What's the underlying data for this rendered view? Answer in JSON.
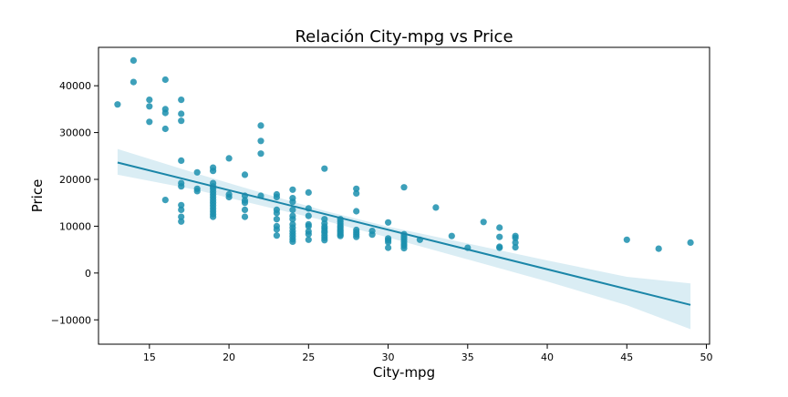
{
  "chart_data": {
    "type": "scatter",
    "title": "Relación City-mpg vs Price",
    "xlabel": "City-mpg",
    "ylabel": "Price",
    "xlim": [
      11.8,
      50.2
    ],
    "ylim": [
      -15200,
      48200
    ],
    "xticks": [
      15,
      20,
      25,
      30,
      35,
      40,
      45,
      50
    ],
    "yticks": [
      -10000,
      0,
      10000,
      20000,
      30000,
      40000
    ],
    "grid": false,
    "legend": "none",
    "colors": {
      "points": "#1b8fae",
      "line": "#1b86a8",
      "ci": "#add8e6"
    },
    "points": [
      {
        "x": 13,
        "y": 36000
      },
      {
        "x": 14,
        "y": 45400
      },
      {
        "x": 14,
        "y": 40800
      },
      {
        "x": 15,
        "y": 37000
      },
      {
        "x": 15,
        "y": 35600
      },
      {
        "x": 15,
        "y": 32300
      },
      {
        "x": 16,
        "y": 41300
      },
      {
        "x": 16,
        "y": 35000
      },
      {
        "x": 16,
        "y": 34200
      },
      {
        "x": 16,
        "y": 30800
      },
      {
        "x": 16,
        "y": 15600
      },
      {
        "x": 17,
        "y": 37000
      },
      {
        "x": 17,
        "y": 34000
      },
      {
        "x": 17,
        "y": 32500
      },
      {
        "x": 17,
        "y": 24000
      },
      {
        "x": 17,
        "y": 19200
      },
      {
        "x": 17,
        "y": 18500
      },
      {
        "x": 17,
        "y": 14500
      },
      {
        "x": 17,
        "y": 13500
      },
      {
        "x": 17,
        "y": 12000
      },
      {
        "x": 17,
        "y": 11000
      },
      {
        "x": 18,
        "y": 21500
      },
      {
        "x": 18,
        "y": 18000
      },
      {
        "x": 18,
        "y": 17500
      },
      {
        "x": 19,
        "y": 22500
      },
      {
        "x": 19,
        "y": 21800
      },
      {
        "x": 19,
        "y": 19200
      },
      {
        "x": 19,
        "y": 18500
      },
      {
        "x": 19,
        "y": 18000
      },
      {
        "x": 19,
        "y": 17400
      },
      {
        "x": 19,
        "y": 16800
      },
      {
        "x": 19,
        "y": 16200
      },
      {
        "x": 19,
        "y": 15600
      },
      {
        "x": 19,
        "y": 15000
      },
      {
        "x": 19,
        "y": 14400
      },
      {
        "x": 19,
        "y": 13800
      },
      {
        "x": 19,
        "y": 13200
      },
      {
        "x": 19,
        "y": 12600
      },
      {
        "x": 19,
        "y": 12000
      },
      {
        "x": 20,
        "y": 24500
      },
      {
        "x": 20,
        "y": 16800
      },
      {
        "x": 20,
        "y": 16200
      },
      {
        "x": 21,
        "y": 21000
      },
      {
        "x": 21,
        "y": 16500
      },
      {
        "x": 21,
        "y": 15500
      },
      {
        "x": 21,
        "y": 15000
      },
      {
        "x": 21,
        "y": 13500
      },
      {
        "x": 21,
        "y": 12000
      },
      {
        "x": 22,
        "y": 31500
      },
      {
        "x": 22,
        "y": 28200
      },
      {
        "x": 22,
        "y": 25500
      },
      {
        "x": 22,
        "y": 16500
      },
      {
        "x": 23,
        "y": 16800
      },
      {
        "x": 23,
        "y": 16200
      },
      {
        "x": 23,
        "y": 13500
      },
      {
        "x": 23,
        "y": 12800
      },
      {
        "x": 23,
        "y": 11500
      },
      {
        "x": 23,
        "y": 10000
      },
      {
        "x": 23,
        "y": 9300
      },
      {
        "x": 23,
        "y": 8000
      },
      {
        "x": 24,
        "y": 17800
      },
      {
        "x": 24,
        "y": 16000
      },
      {
        "x": 24,
        "y": 15200
      },
      {
        "x": 24,
        "y": 13500
      },
      {
        "x": 24,
        "y": 12200
      },
      {
        "x": 24,
        "y": 11500
      },
      {
        "x": 24,
        "y": 10400
      },
      {
        "x": 24,
        "y": 9700
      },
      {
        "x": 24,
        "y": 9000
      },
      {
        "x": 24,
        "y": 8400
      },
      {
        "x": 24,
        "y": 7800
      },
      {
        "x": 24,
        "y": 7200
      },
      {
        "x": 24,
        "y": 6700
      },
      {
        "x": 25,
        "y": 17200
      },
      {
        "x": 25,
        "y": 13800
      },
      {
        "x": 25,
        "y": 12200
      },
      {
        "x": 25,
        "y": 10400
      },
      {
        "x": 25,
        "y": 10000
      },
      {
        "x": 25,
        "y": 8900
      },
      {
        "x": 25,
        "y": 8300
      },
      {
        "x": 25,
        "y": 7100
      },
      {
        "x": 26,
        "y": 22300
      },
      {
        "x": 26,
        "y": 11500
      },
      {
        "x": 26,
        "y": 10600
      },
      {
        "x": 26,
        "y": 9900
      },
      {
        "x": 26,
        "y": 9500
      },
      {
        "x": 26,
        "y": 9000
      },
      {
        "x": 26,
        "y": 8600
      },
      {
        "x": 26,
        "y": 8000
      },
      {
        "x": 26,
        "y": 7500
      },
      {
        "x": 26,
        "y": 7000
      },
      {
        "x": 27,
        "y": 11500
      },
      {
        "x": 27,
        "y": 11000
      },
      {
        "x": 27,
        "y": 10500
      },
      {
        "x": 27,
        "y": 10000
      },
      {
        "x": 27,
        "y": 9700
      },
      {
        "x": 27,
        "y": 9300
      },
      {
        "x": 27,
        "y": 9000
      },
      {
        "x": 27,
        "y": 8600
      },
      {
        "x": 27,
        "y": 8200
      },
      {
        "x": 27,
        "y": 7900
      },
      {
        "x": 28,
        "y": 18000
      },
      {
        "x": 28,
        "y": 17000
      },
      {
        "x": 28,
        "y": 13200
      },
      {
        "x": 28,
        "y": 9200
      },
      {
        "x": 28,
        "y": 8700
      },
      {
        "x": 28,
        "y": 8200
      },
      {
        "x": 28,
        "y": 7700
      },
      {
        "x": 29,
        "y": 9000
      },
      {
        "x": 29,
        "y": 8200
      },
      {
        "x": 30,
        "y": 10800
      },
      {
        "x": 30,
        "y": 7400
      },
      {
        "x": 30,
        "y": 7000
      },
      {
        "x": 30,
        "y": 6600
      },
      {
        "x": 30,
        "y": 5400
      },
      {
        "x": 31,
        "y": 18300
      },
      {
        "x": 31,
        "y": 8300
      },
      {
        "x": 31,
        "y": 7700
      },
      {
        "x": 31,
        "y": 7200
      },
      {
        "x": 31,
        "y": 6700
      },
      {
        "x": 31,
        "y": 6200
      },
      {
        "x": 31,
        "y": 5800
      },
      {
        "x": 31,
        "y": 5300
      },
      {
        "x": 32,
        "y": 7100
      },
      {
        "x": 33,
        "y": 14000
      },
      {
        "x": 34,
        "y": 7900
      },
      {
        "x": 35,
        "y": 5400
      },
      {
        "x": 36,
        "y": 10900
      },
      {
        "x": 37,
        "y": 9700
      },
      {
        "x": 37,
        "y": 7700
      },
      {
        "x": 37,
        "y": 5600
      },
      {
        "x": 37,
        "y": 5400
      },
      {
        "x": 38,
        "y": 7900
      },
      {
        "x": 38,
        "y": 7500
      },
      {
        "x": 38,
        "y": 6500
      },
      {
        "x": 38,
        "y": 5500
      },
      {
        "x": 45,
        "y": 7100
      },
      {
        "x": 47,
        "y": 5200
      },
      {
        "x": 49,
        "y": 6500
      }
    ],
    "regression": {
      "x": [
        13,
        49
      ],
      "y": [
        23600,
        -6800
      ]
    },
    "ci_band": [
      {
        "x": 13,
        "lo": 21000,
        "hi": 26500
      },
      {
        "x": 18,
        "lo": 17700,
        "hi": 21200
      },
      {
        "x": 23,
        "lo": 13600,
        "hi": 16200
      },
      {
        "x": 26,
        "lo": 11200,
        "hi": 13300
      },
      {
        "x": 30,
        "lo": 7600,
        "hi": 9900
      },
      {
        "x": 35,
        "lo": 2900,
        "hi": 6300
      },
      {
        "x": 40,
        "lo": -1800,
        "hi": 2700
      },
      {
        "x": 45,
        "lo": -6900,
        "hi": -800
      },
      {
        "x": 49,
        "lo": -12000,
        "hi": -2200
      }
    ]
  }
}
